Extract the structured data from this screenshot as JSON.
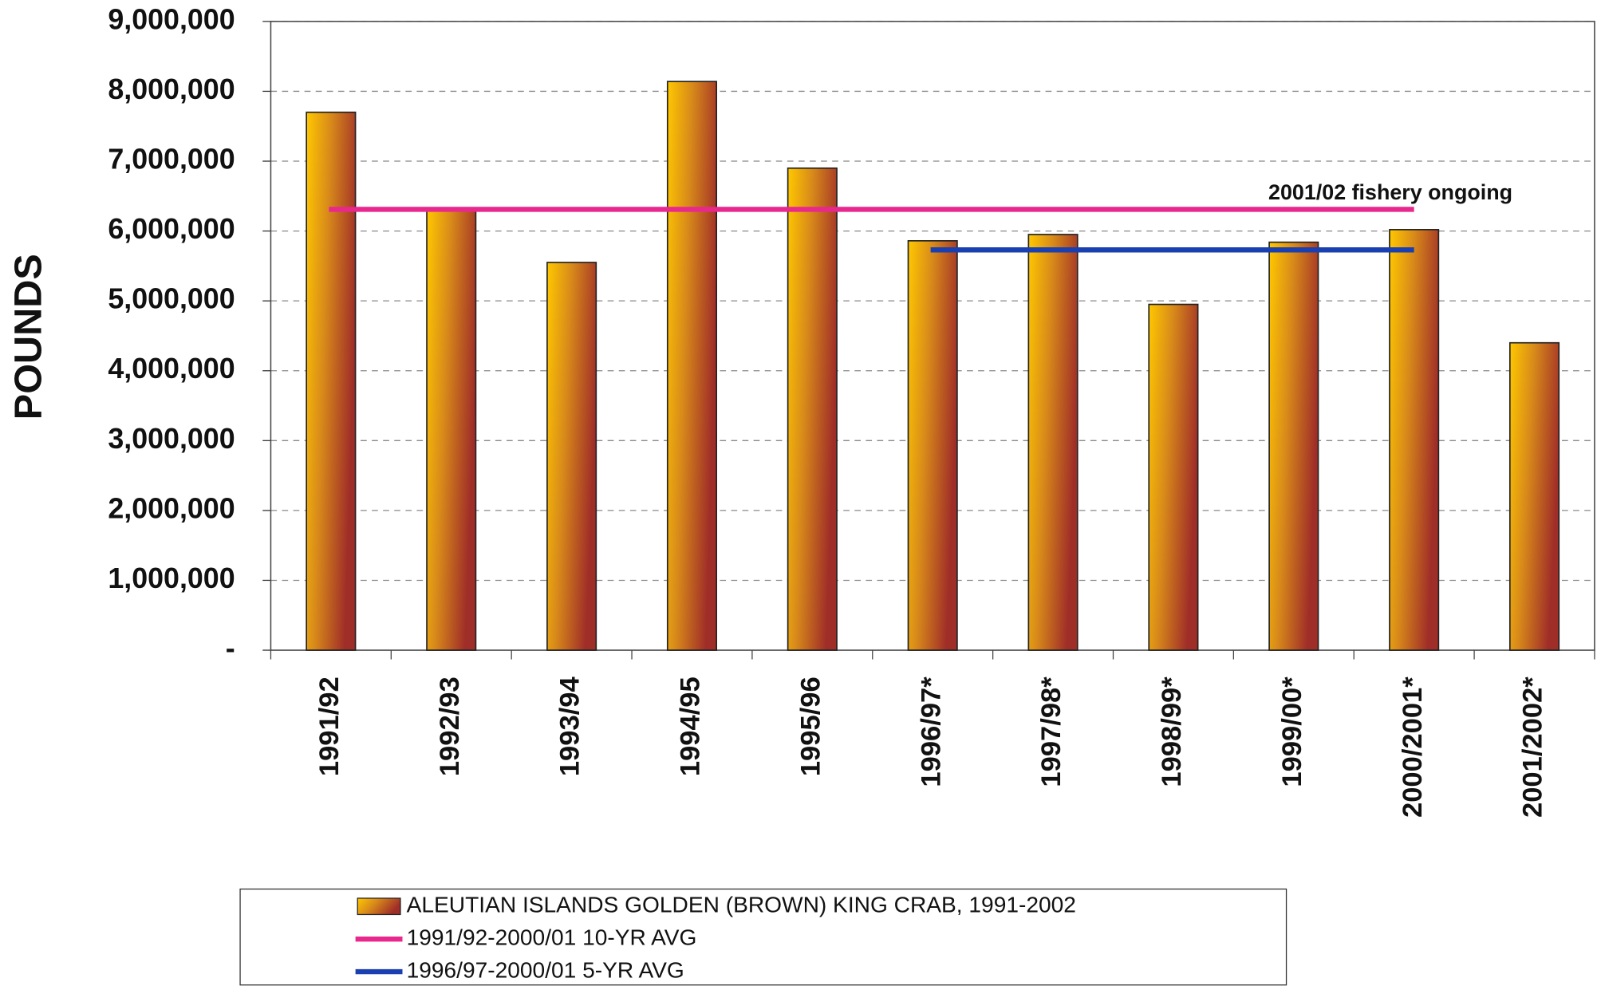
{
  "chart_data": {
    "type": "bar",
    "y_label": "POUNDS",
    "annotation": "2001/02 fishery ongoing",
    "categories": [
      "1991/92",
      "1992/93",
      "1993/94",
      "1994/95",
      "1995/96",
      "1996/97*",
      "1997/98*",
      "1998/99*",
      "1999/00*",
      "2000/2001*",
      "2001/2002*"
    ],
    "series": [
      {
        "name": "ALEUTIAN ISLANDS GOLDEN (BROWN) KING CRAB, 1991-2002",
        "color": "#e0a000",
        "values": [
          7700000,
          6310000,
          5550000,
          8140000,
          6900000,
          5860000,
          5950000,
          4950000,
          5840000,
          6020000,
          4400000
        ]
      }
    ],
    "averages": [
      {
        "name": "1991/92-2000/01 10-YR AVG",
        "color": "#e8288c",
        "value": 6310000,
        "from": "1991/92",
        "to": "2000/2001*"
      },
      {
        "name": "1996/97-2000/01 5-YR AVG",
        "color": "#1a3fb0",
        "value": 5730000,
        "from": "1996/97*",
        "to": "2000/2001*"
      }
    ],
    "ylim": [
      0,
      9000000
    ],
    "yticks": [
      {
        "value": 0,
        "label": "-"
      },
      {
        "value": 1000000,
        "label": "1,000,000"
      },
      {
        "value": 2000000,
        "label": "2,000,000"
      },
      {
        "value": 3000000,
        "label": "3,000,000"
      },
      {
        "value": 4000000,
        "label": "4,000,000"
      },
      {
        "value": 5000000,
        "label": "5,000,000"
      },
      {
        "value": 6000000,
        "label": "6,000,000"
      },
      {
        "value": 7000000,
        "label": "7,000,000"
      },
      {
        "value": 8000000,
        "label": "8,000,000"
      },
      {
        "value": 9000000,
        "label": "9,000,000"
      }
    ],
    "grid": true
  }
}
